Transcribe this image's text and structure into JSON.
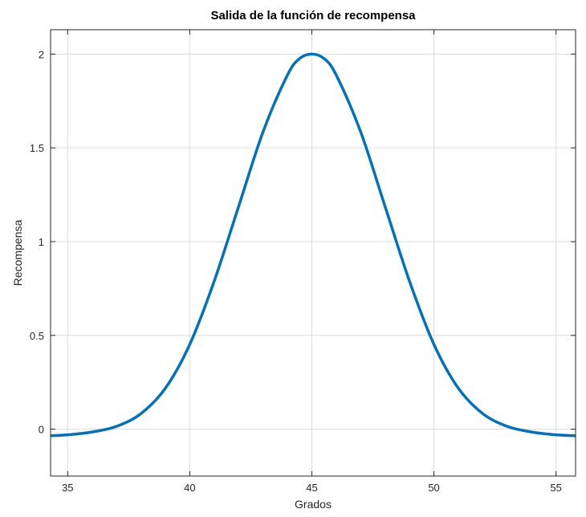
{
  "chart_data": {
    "type": "line",
    "title": "Salida de la función de recompensa",
    "xlabel": "Grados",
    "ylabel": "Recompensa",
    "xlim": [
      34.3,
      55.8
    ],
    "ylim": [
      -0.25,
      2.13
    ],
    "xticks": [
      35,
      40,
      45,
      50,
      55
    ],
    "yticks": [
      0,
      0.5,
      1,
      1.5,
      2
    ],
    "xtick_labels": [
      "35",
      "40",
      "45",
      "50",
      "55"
    ],
    "ytick_labels": [
      "0",
      "0.5",
      "1",
      "1.5",
      "2"
    ],
    "grid": true,
    "series": [
      {
        "color": "#0072BD",
        "x": [
          34.3,
          35,
          36,
          37,
          38,
          39,
          40,
          41,
          42,
          43,
          44,
          44.5,
          45,
          45.5,
          46,
          47,
          48,
          49,
          50,
          51,
          52,
          53,
          54,
          55,
          55.8
        ],
        "y": [
          -0.035,
          -0.03,
          -0.015,
          0.015,
          0.083,
          0.218,
          0.452,
          0.789,
          1.187,
          1.585,
          1.888,
          1.976,
          2.0,
          1.976,
          1.888,
          1.585,
          1.187,
          0.789,
          0.452,
          0.218,
          0.083,
          0.015,
          -0.015,
          -0.03,
          -0.035
        ]
      }
    ]
  }
}
